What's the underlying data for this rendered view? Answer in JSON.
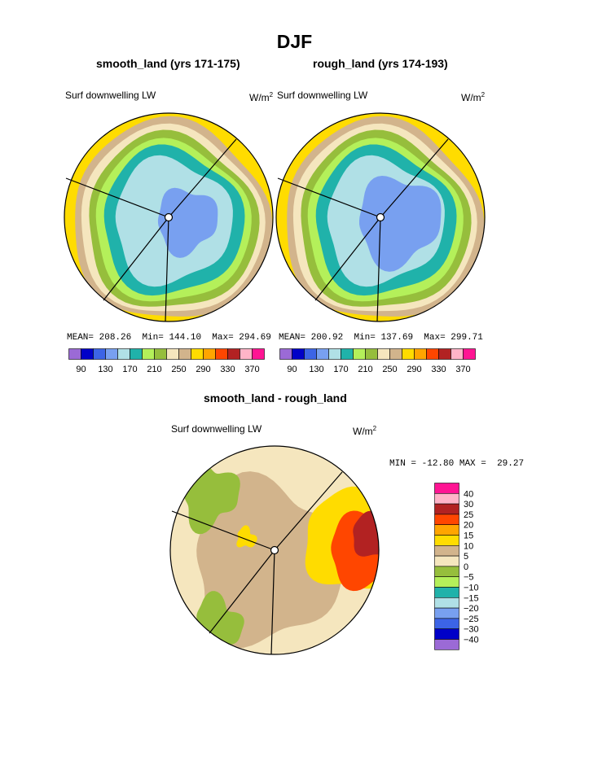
{
  "page": {
    "title": "DJF"
  },
  "panels": [
    {
      "id": "smooth",
      "title": "smooth_land (yrs 171-175)",
      "variable": "Surf downwelling LW",
      "units_base": "W/m",
      "units_exp": "2",
      "stats": {
        "mean_label": "MEAN=",
        "mean": "208.26",
        "min_label": "Min=",
        "min": "144.10",
        "max_label": "Max=",
        "max": "294.69"
      }
    },
    {
      "id": "rough",
      "title": "rough_land (yrs 174-193)",
      "variable": "Surf downwelling LW",
      "units_base": "W/m",
      "units_exp": "2",
      "stats": {
        "mean_label": "MEAN=",
        "mean": "200.92",
        "min_label": "Min=",
        "min": "137.69",
        "max_label": "Max=",
        "max": "299.71"
      }
    },
    {
      "id": "diff",
      "title": "smooth_land - rough_land",
      "variable": "Surf downwelling LW",
      "units_base": "W/m",
      "units_exp": "2",
      "stats": {
        "min_label": "MIN =",
        "min": "-12.80",
        "max_label": "MAX =",
        "max": "29.27"
      }
    }
  ],
  "chart_data": [
    {
      "type": "heatmap",
      "projection": "polar",
      "title": "smooth_land (yrs 171-175)",
      "variable": "Surf downwelling LW",
      "units": "W/m2",
      "levels": [
        90,
        110,
        130,
        150,
        170,
        190,
        210,
        230,
        250,
        270,
        290,
        310,
        330,
        350,
        370
      ],
      "colorbar_ticks": [
        "90",
        "130",
        "170",
        "210",
        "250",
        "290",
        "330",
        "370"
      ],
      "colors": [
        "#9b6ad6",
        "#0000c8",
        "#3c64e6",
        "#78a0f0",
        "#b0e0e6",
        "#20b2aa",
        "#b4f05a",
        "#96be3c",
        "#f5e6be",
        "#d2b48c",
        "#ffdc00",
        "#ffa500",
        "#ff4600",
        "#b22222",
        "#ffb4c8",
        "#ff1493"
      ],
      "mean": 208.26,
      "min": 144.1,
      "max": 294.69
    },
    {
      "type": "heatmap",
      "projection": "polar",
      "title": "rough_land (yrs 174-193)",
      "variable": "Surf downwelling LW",
      "units": "W/m2",
      "levels": [
        90,
        110,
        130,
        150,
        170,
        190,
        210,
        230,
        250,
        270,
        290,
        310,
        330,
        350,
        370
      ],
      "colorbar_ticks": [
        "90",
        "130",
        "170",
        "210",
        "250",
        "290",
        "330",
        "370"
      ],
      "colors": [
        "#9b6ad6",
        "#0000c8",
        "#3c64e6",
        "#78a0f0",
        "#b0e0e6",
        "#20b2aa",
        "#b4f05a",
        "#96be3c",
        "#f5e6be",
        "#d2b48c",
        "#ffdc00",
        "#ffa500",
        "#ff4600",
        "#b22222",
        "#ffb4c8",
        "#ff1493"
      ],
      "mean": 200.92,
      "min": 137.69,
      "max": 299.71
    },
    {
      "type": "heatmap",
      "projection": "polar",
      "title": "smooth_land - rough_land",
      "variable": "Surf downwelling LW",
      "units": "W/m2",
      "levels": [
        -40,
        -30,
        -25,
        -20,
        -15,
        -10,
        -5,
        0,
        5,
        10,
        15,
        20,
        25,
        30,
        40
      ],
      "colorbar_ticks": [
        "40",
        "30",
        "25",
        "20",
        "15",
        "10",
        "5",
        "0",
        "−5",
        "−10",
        "−15",
        "−20",
        "−25",
        "−30",
        "−40"
      ],
      "colors": [
        "#ff1493",
        "#ffb4c8",
        "#b22222",
        "#ff4600",
        "#ffa500",
        "#ffdc00",
        "#d2b48c",
        "#f5e6be",
        "#96be3c",
        "#b4f05a",
        "#20b2aa",
        "#b0e0e6",
        "#78a0f0",
        "#3c64e6",
        "#0000c8",
        "#9b6ad6"
      ],
      "min": -12.8,
      "max": 29.27
    }
  ]
}
